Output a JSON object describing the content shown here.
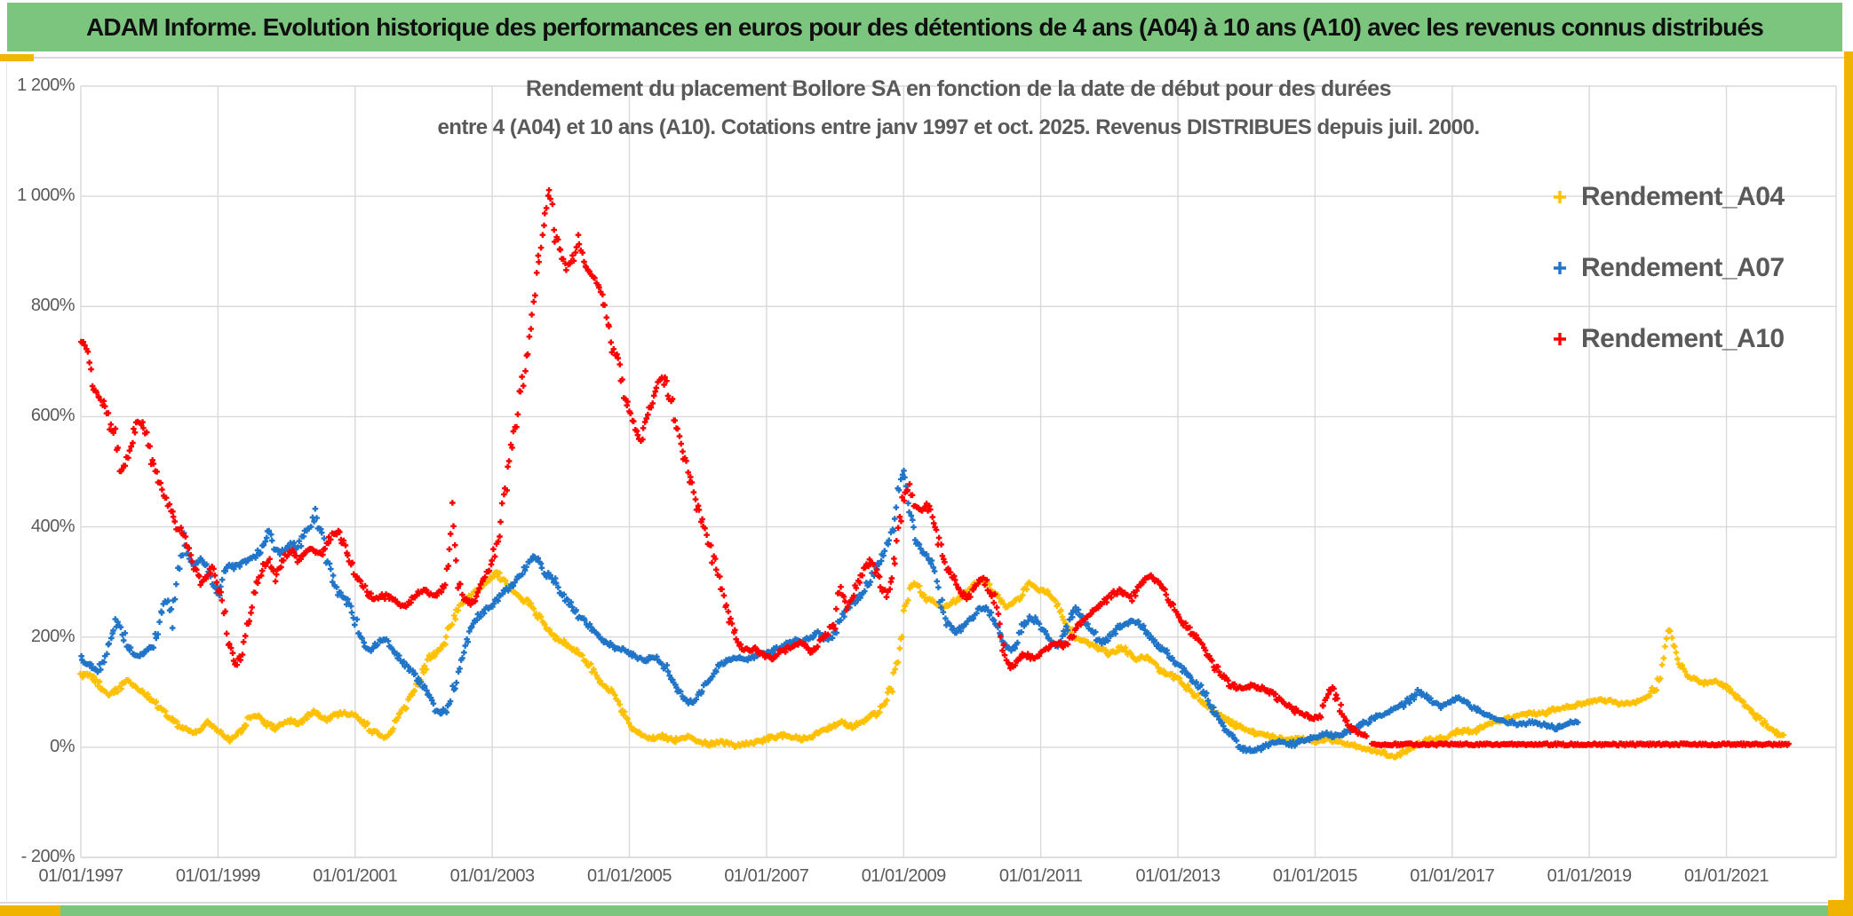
{
  "banner": {
    "title": "ADAM Informe. Evolution historique des performances en euros pour des détentions de 4 ans (A04) à 10 ans (A10) avec les revenus connus distribués"
  },
  "chart": {
    "title_line1": "Rendement du placement Bollore SA en fonction de la date de début pour des durées",
    "title_line2": "entre 4 (A04) et 10 ans (A10). Cotations entre janv 1997 et oct. 2025. Revenus DISTRIBUES depuis juil. 2000.",
    "colors": {
      "banner_green": "#7CC57E",
      "accent_gold": "#F0B400",
      "grid_grey": "#D9D9D9",
      "text_grey": "#595959"
    }
  },
  "chart_data": {
    "type": "scatter",
    "title": "Rendement du placement Bollore SA en fonction de la date de début pour des durées entre 4 (A04) et 10 ans (A10). Cotations entre janv 1997 et oct. 2025. Revenus DISTRIBUES depuis juil. 2000.",
    "marker": "plus",
    "grid": true,
    "legend_position": "right",
    "x_axis": {
      "min_year": 1997.0,
      "max_year": 2022.6,
      "tick_years": [
        1997,
        1999,
        2001,
        2003,
        2005,
        2007,
        2009,
        2011,
        2013,
        2015,
        2017,
        2019,
        2021
      ],
      "tick_labels": [
        "01/01/1997",
        "01/01/1999",
        "01/01/2001",
        "01/01/2003",
        "01/01/2005",
        "01/01/2007",
        "01/01/2009",
        "01/01/2011",
        "01/01/2013",
        "01/01/2015",
        "01/01/2017",
        "01/01/2019",
        "01/01/2021"
      ]
    },
    "y_axis": {
      "min": -200,
      "max": 1200,
      "step": 200,
      "unit": "%",
      "tick_values": [
        1200,
        1000,
        800,
        600,
        400,
        200,
        0,
        -200
      ],
      "tick_labels": [
        "1 200%",
        "1 000%",
        "800%",
        "600%",
        "400%",
        "200%",
        "0%",
        "- 200%"
      ]
    },
    "series": [
      {
        "name": "Rendement_A04",
        "color": "#FFC000",
        "start_year": 1997.0,
        "points_per_year": 12,
        "values": [
          130,
          135,
          125,
          115,
          105,
          95,
          100,
          110,
          120,
          115,
          105,
          100,
          90,
          80,
          70,
          60,
          50,
          40,
          35,
          30,
          25,
          30,
          45,
          40,
          30,
          20,
          15,
          20,
          30,
          45,
          60,
          55,
          45,
          40,
          35,
          40,
          45,
          50,
          45,
          50,
          60,
          65,
          55,
          50,
          55,
          60,
          65,
          60,
          60,
          50,
          40,
          30,
          25,
          20,
          25,
          40,
          60,
          80,
          100,
          120,
          140,
          160,
          170,
          180,
          200,
          230,
          250,
          265,
          270,
          280,
          290,
          300,
          310,
          315,
          300,
          290,
          280,
          270,
          265,
          255,
          240,
          225,
          210,
          200,
          195,
          185,
          180,
          170,
          160,
          150,
          135,
          120,
          110,
          100,
          80,
          60,
          45,
          30,
          22,
          18,
          15,
          18,
          20,
          15,
          12,
          15,
          18,
          15,
          10,
          8,
          5,
          8,
          10,
          8,
          5,
          3,
          5,
          8,
          10,
          12,
          15,
          18,
          20,
          22,
          20,
          18,
          15,
          18,
          20,
          25,
          30,
          35,
          40,
          45,
          40,
          38,
          42,
          50,
          55,
          60,
          70,
          85,
          110,
          160,
          230,
          290,
          300,
          280,
          270,
          265,
          260,
          255,
          260,
          265,
          270,
          280,
          290,
          300,
          305,
          295,
          280,
          265,
          255,
          260,
          270,
          285,
          295,
          290,
          285,
          280,
          270,
          255,
          235,
          215,
          200,
          195,
          190,
          185,
          180,
          175,
          170,
          175,
          180,
          175,
          165,
          160,
          165,
          160,
          150,
          140,
          135,
          130,
          125,
          115,
          105,
          95,
          85,
          75,
          65,
          60,
          55,
          45,
          40,
          35,
          30,
          28,
          25,
          22,
          20,
          18,
          15,
          14,
          15,
          16,
          15,
          12,
          10,
          12,
          15,
          12,
          10,
          8,
          5,
          3,
          0,
          -3,
          -5,
          -8,
          -10,
          -15,
          -18,
          -12,
          -5,
          0,
          5,
          10,
          15,
          12,
          15,
          18,
          22,
          28,
          30,
          28,
          30,
          35,
          40,
          45,
          48,
          50,
          52,
          55,
          58,
          60,
          62,
          60,
          62,
          65,
          68,
          70,
          72,
          75,
          78,
          80,
          82,
          85,
          88,
          85,
          82,
          80,
          78,
          80,
          82,
          85,
          90,
          100,
          115,
          160,
          215,
          180,
          150,
          135,
          125,
          120,
          115,
          118,
          120,
          115,
          110,
          100,
          90,
          80,
          70,
          60,
          50,
          40,
          32,
          25,
          22
        ]
      },
      {
        "name": "Rendement_A07",
        "color": "#2175C8",
        "start_year": 1997.0,
        "points_per_year": 12,
        "values": [
          160,
          150,
          145,
          140,
          160,
          190,
          230,
          215,
          190,
          170,
          165,
          170,
          175,
          185,
          240,
          270,
          230,
          320,
          380,
          340,
          330,
          340,
          330,
          300,
          280,
          320,
          330,
          325,
          335,
          340,
          345,
          350,
          370,
          390,
          360,
          350,
          360,
          370,
          360,
          380,
          400,
          420,
          390,
          350,
          310,
          280,
          270,
          260,
          230,
          200,
          180,
          175,
          190,
          200,
          185,
          170,
          160,
          150,
          140,
          120,
          110,
          90,
          70,
          60,
          70,
          100,
          140,
          180,
          210,
          230,
          240,
          250,
          260,
          270,
          280,
          290,
          300,
          310,
          330,
          345,
          340,
          320,
          310,
          300,
          280,
          265,
          255,
          240,
          230,
          220,
          210,
          200,
          190,
          185,
          180,
          175,
          170,
          165,
          160,
          160,
          165,
          160,
          150,
          130,
          110,
          95,
          85,
          80,
          90,
          110,
          125,
          140,
          150,
          155,
          160,
          165,
          160,
          160,
          165,
          170,
          170,
          175,
          180,
          185,
          190,
          195,
          190,
          195,
          200,
          210,
          200,
          195,
          210,
          230,
          250,
          260,
          270,
          280,
          300,
          320,
          340,
          360,
          400,
          460,
          505,
          430,
          380,
          360,
          350,
          330,
          290,
          240,
          220,
          205,
          215,
          225,
          235,
          250,
          255,
          245,
          225,
          200,
          180,
          175,
          195,
          220,
          235,
          230,
          220,
          205,
          190,
          185,
          200,
          230,
          250,
          240,
          225,
          210,
          195,
          190,
          200,
          210,
          220,
          225,
          230,
          225,
          215,
          200,
          190,
          180,
          175,
          160,
          150,
          140,
          130,
          120,
          110,
          90,
          70,
          55,
          40,
          25,
          10,
          0,
          -5,
          -8,
          -5,
          0,
          5,
          8,
          10,
          8,
          5,
          10,
          12,
          15,
          18,
          20,
          25,
          22,
          20,
          25,
          30,
          35,
          40,
          45,
          50,
          55,
          60,
          65,
          70,
          75,
          80,
          90,
          100,
          95,
          85,
          80,
          75,
          80,
          85,
          90,
          85,
          75,
          70,
          65,
          60,
          55,
          50,
          48,
          45,
          42,
          40,
          42,
          45,
          42,
          40,
          38,
          35,
          38,
          42,
          45,
          45
        ]
      },
      {
        "name": "Rendement_A10",
        "color": "#FF0000",
        "start_year": 1997.0,
        "points_per_year": 12,
        "values": [
          735,
          720,
          655,
          640,
          620,
          585,
          560,
          500,
          515,
          560,
          590,
          585,
          540,
          500,
          470,
          450,
          420,
          400,
          390,
          360,
          320,
          300,
          310,
          330,
          300,
          250,
          180,
          150,
          170,
          210,
          260,
          300,
          330,
          340,
          310,
          330,
          350,
          355,
          340,
          350,
          360,
          355,
          350,
          365,
          385,
          390,
          370,
          340,
          315,
          300,
          285,
          270,
          270,
          275,
          270,
          265,
          260,
          255,
          270,
          280,
          285,
          280,
          275,
          285,
          300,
          430,
          300,
          270,
          260,
          270,
          290,
          310,
          330,
          380,
          450,
          520,
          580,
          640,
          700,
          780,
          870,
          950,
          1010,
          930,
          900,
          870,
          880,
          920,
          880,
          860,
          850,
          830,
          790,
          720,
          700,
          640,
          610,
          580,
          560,
          600,
          630,
          660,
          670,
          640,
          590,
          550,
          510,
          470,
          430,
          400,
          370,
          330,
          300,
          260,
          220,
          190,
          180,
          175,
          180,
          170,
          165,
          160,
          170,
          175,
          180,
          185,
          190,
          180,
          175,
          185,
          200,
          215,
          230,
          290,
          250,
          270,
          300,
          320,
          340,
          330,
          300,
          270,
          310,
          390,
          450,
          480,
          440,
          430,
          440,
          420,
          380,
          340,
          320,
          300,
          280,
          270,
          280,
          300,
          310,
          280,
          260,
          200,
          160,
          145,
          160,
          170,
          165,
          160,
          170,
          180,
          185,
          190,
          185,
          195,
          210,
          225,
          235,
          245,
          250,
          260,
          270,
          280,
          285,
          275,
          270,
          290,
          300,
          310,
          305,
          295,
          280,
          260,
          240,
          225,
          215,
          200,
          185,
          170,
          155,
          140,
          125,
          115,
          110,
          105,
          110,
          115,
          110,
          105,
          100,
          95,
          85,
          75,
          70,
          65,
          60,
          55,
          50,
          60,
          90,
          110,
          80,
          55,
          40,
          30,
          25,
          20
        ],
        "flat_tail": {
          "from": 2015.83,
          "to": 2021.92,
          "value": 5
        }
      }
    ]
  }
}
